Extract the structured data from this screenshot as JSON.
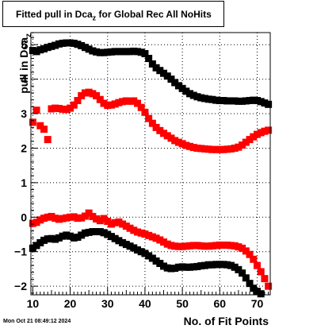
{
  "title": {
    "main": "Fitted pull in Dca",
    "sub": "z",
    "rest": " for Global Rec All NoHits"
  },
  "stamp": "Mon Oct 21 08:49:12 2024",
  "chart_data": {
    "type": "scatter",
    "xlabel": "No. of Fit Points",
    "ylabel": {
      "main": "pull in Dca",
      "sub": "z"
    },
    "xlim": [
      9.5,
      73.5
    ],
    "ylim": [
      -2.25,
      5.35
    ],
    "xticks": [
      10,
      20,
      30,
      40,
      50,
      60,
      70
    ],
    "yticks": [
      -2,
      -1,
      0,
      1,
      2,
      3,
      4,
      5
    ],
    "grid": true,
    "series": [
      {
        "color": "#000000",
        "x": [
          10,
          11,
          12,
          13,
          14,
          15,
          16,
          17,
          18,
          19,
          20,
          21,
          22,
          23,
          24,
          25,
          26,
          27,
          28,
          29,
          30,
          31,
          32,
          33,
          34,
          35,
          36,
          37,
          38,
          39,
          40,
          41,
          42,
          43,
          44,
          45,
          46,
          47,
          48,
          49,
          50,
          51,
          52,
          53,
          54,
          55,
          56,
          57,
          58,
          59,
          60,
          61,
          62,
          63,
          64,
          65,
          66,
          67,
          68,
          69,
          70,
          71,
          72,
          73
        ],
        "y": [
          4.83,
          4.8,
          4.85,
          4.88,
          4.92,
          4.95,
          4.98,
          5.02,
          5.04,
          5.05,
          5.05,
          5.04,
          5.01,
          4.97,
          4.92,
          4.87,
          4.82,
          4.79,
          4.77,
          4.77,
          4.78,
          4.79,
          4.8,
          4.8,
          4.8,
          4.8,
          4.8,
          4.81,
          4.8,
          4.78,
          4.74,
          4.6,
          4.44,
          4.33,
          4.25,
          4.17,
          4.09,
          4.0,
          3.9,
          3.81,
          3.73,
          3.65,
          3.58,
          3.53,
          3.49,
          3.46,
          3.44,
          3.42,
          3.41,
          3.39,
          3.38,
          3.38,
          3.37,
          3.37,
          3.37,
          3.36,
          3.36,
          3.37,
          3.38,
          3.39,
          3.38,
          3.35,
          3.31,
          3.27
        ]
      },
      {
        "color": "#ff0000",
        "x": [
          10,
          11,
          12,
          13,
          14,
          15,
          16,
          17,
          18,
          19,
          20,
          21,
          22,
          23,
          24,
          25,
          26,
          27,
          28,
          29,
          30,
          31,
          32,
          33,
          34,
          35,
          36,
          37,
          38,
          39,
          40,
          41,
          42,
          43,
          44,
          45,
          46,
          47,
          48,
          49,
          50,
          51,
          52,
          53,
          54,
          55,
          56,
          57,
          58,
          59,
          60,
          61,
          62,
          63,
          64,
          65,
          66,
          67,
          68,
          69,
          70,
          71,
          72,
          73
        ],
        "y": [
          2.75,
          3.1,
          2.65,
          2.55,
          2.25,
          3.14,
          3.16,
          3.15,
          3.13,
          3.12,
          3.16,
          3.25,
          3.38,
          3.52,
          3.6,
          3.62,
          3.58,
          3.52,
          3.41,
          3.3,
          3.24,
          3.25,
          3.28,
          3.32,
          3.35,
          3.37,
          3.36,
          3.37,
          3.3,
          3.18,
          3.04,
          2.86,
          2.72,
          2.6,
          2.51,
          2.43,
          2.36,
          2.29,
          2.22,
          2.17,
          2.13,
          2.08,
          2.05,
          2.02,
          2.0,
          1.99,
          1.98,
          1.97,
          1.96,
          1.96,
          1.96,
          1.96,
          1.97,
          1.98,
          2.0,
          2.03,
          2.09,
          2.17,
          2.25,
          2.33,
          2.4,
          2.45,
          2.49,
          2.52
        ]
      },
      {
        "color": "#ff0000",
        "x": [
          10,
          11,
          12,
          13,
          14,
          15,
          16,
          17,
          18,
          19,
          20,
          21,
          22,
          23,
          24,
          25,
          26,
          27,
          28,
          29,
          30,
          31,
          32,
          33,
          34,
          35,
          36,
          37,
          38,
          39,
          40,
          41,
          42,
          43,
          44,
          45,
          46,
          47,
          48,
          49,
          50,
          51,
          52,
          53,
          54,
          55,
          56,
          57,
          58,
          59,
          60,
          61,
          62,
          63,
          64,
          65,
          66,
          67,
          68,
          69,
          70,
          71,
          72,
          73
        ],
        "y": [
          -0.18,
          -0.15,
          -0.08,
          -0.03,
          0.0,
          0.02,
          -0.03,
          -0.06,
          -0.04,
          -0.02,
          0.0,
          0.01,
          -0.03,
          -0.02,
          0.03,
          0.12,
          0.02,
          -0.05,
          -0.1,
          -0.04,
          -0.12,
          -0.2,
          -0.16,
          -0.14,
          -0.2,
          -0.26,
          -0.32,
          -0.38,
          -0.43,
          -0.46,
          -0.49,
          -0.53,
          -0.57,
          -0.61,
          -0.66,
          -0.72,
          -0.78,
          -0.82,
          -0.84,
          -0.85,
          -0.85,
          -0.84,
          -0.83,
          -0.82,
          -0.82,
          -0.83,
          -0.84,
          -0.84,
          -0.83,
          -0.82,
          -0.81,
          -0.81,
          -0.81,
          -0.82,
          -0.83,
          -0.86,
          -0.9,
          -0.98,
          -1.08,
          -1.22,
          -1.4,
          -1.58,
          -1.78,
          -2.0
        ]
      },
      {
        "color": "#000000",
        "x": [
          10,
          11,
          12,
          13,
          14,
          15,
          16,
          17,
          18,
          19,
          20,
          21,
          22,
          23,
          24,
          25,
          26,
          27,
          28,
          29,
          30,
          31,
          32,
          33,
          34,
          35,
          36,
          37,
          38,
          39,
          40,
          41,
          42,
          43,
          44,
          45,
          46,
          47,
          48,
          49,
          50,
          51,
          52,
          53,
          54,
          55,
          56,
          57,
          58,
          59,
          60,
          61,
          62,
          63,
          64,
          65,
          66,
          67,
          68,
          69,
          70,
          71,
          72,
          73
        ],
        "y": [
          -0.9,
          -0.82,
          -0.74,
          -0.67,
          -0.63,
          -0.62,
          -0.64,
          -0.6,
          -0.55,
          -0.52,
          -0.55,
          -0.6,
          -0.58,
          -0.52,
          -0.46,
          -0.44,
          -0.42,
          -0.42,
          -0.42,
          -0.45,
          -0.5,
          -0.56,
          -0.62,
          -0.68,
          -0.74,
          -0.79,
          -0.84,
          -0.89,
          -0.95,
          -1.0,
          -1.05,
          -1.12,
          -1.19,
          -1.27,
          -1.34,
          -1.42,
          -1.47,
          -1.49,
          -1.48,
          -1.45,
          -1.44,
          -1.45,
          -1.45,
          -1.44,
          -1.43,
          -1.41,
          -1.4,
          -1.38,
          -1.38,
          -1.37,
          -1.37,
          -1.37,
          -1.38,
          -1.4,
          -1.45,
          -1.52,
          -1.62,
          -1.76,
          -1.92,
          -2.06,
          -2.15,
          -2.22,
          -2.28,
          -2.33
        ]
      }
    ]
  }
}
